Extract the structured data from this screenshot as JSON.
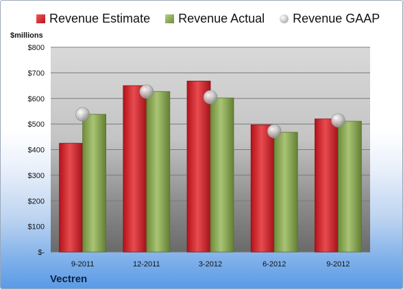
{
  "legend": {
    "estimate": "Revenue Estimate",
    "actual": "Revenue Actual",
    "gaap": "Revenue GAAP"
  },
  "unit_label": "$millions",
  "company": "Vectren",
  "colors": {
    "estimate": "#d42a2f",
    "actual": "#8fae59",
    "gaap": "#b8b8b8"
  },
  "chart_data": {
    "type": "bar",
    "categories": [
      "9-2011",
      "12-2011",
      "3-2012",
      "6-2012",
      "9-2012"
    ],
    "series": [
      {
        "name": "Revenue Estimate",
        "values": [
          425,
          650,
          668,
          497,
          520
        ]
      },
      {
        "name": "Revenue Actual",
        "values": [
          538,
          627,
          602,
          468,
          511
        ]
      },
      {
        "name": "Revenue GAAP",
        "values": [
          538,
          627,
          605,
          472,
          514
        ]
      }
    ],
    "ylim": [
      0,
      800
    ],
    "ytick_labels": [
      "$-",
      "$100",
      "$200",
      "$300",
      "$400",
      "$500",
      "$600",
      "$700",
      "$800"
    ],
    "ylabel": "$millions",
    "grid": true,
    "legend_position": "top"
  }
}
